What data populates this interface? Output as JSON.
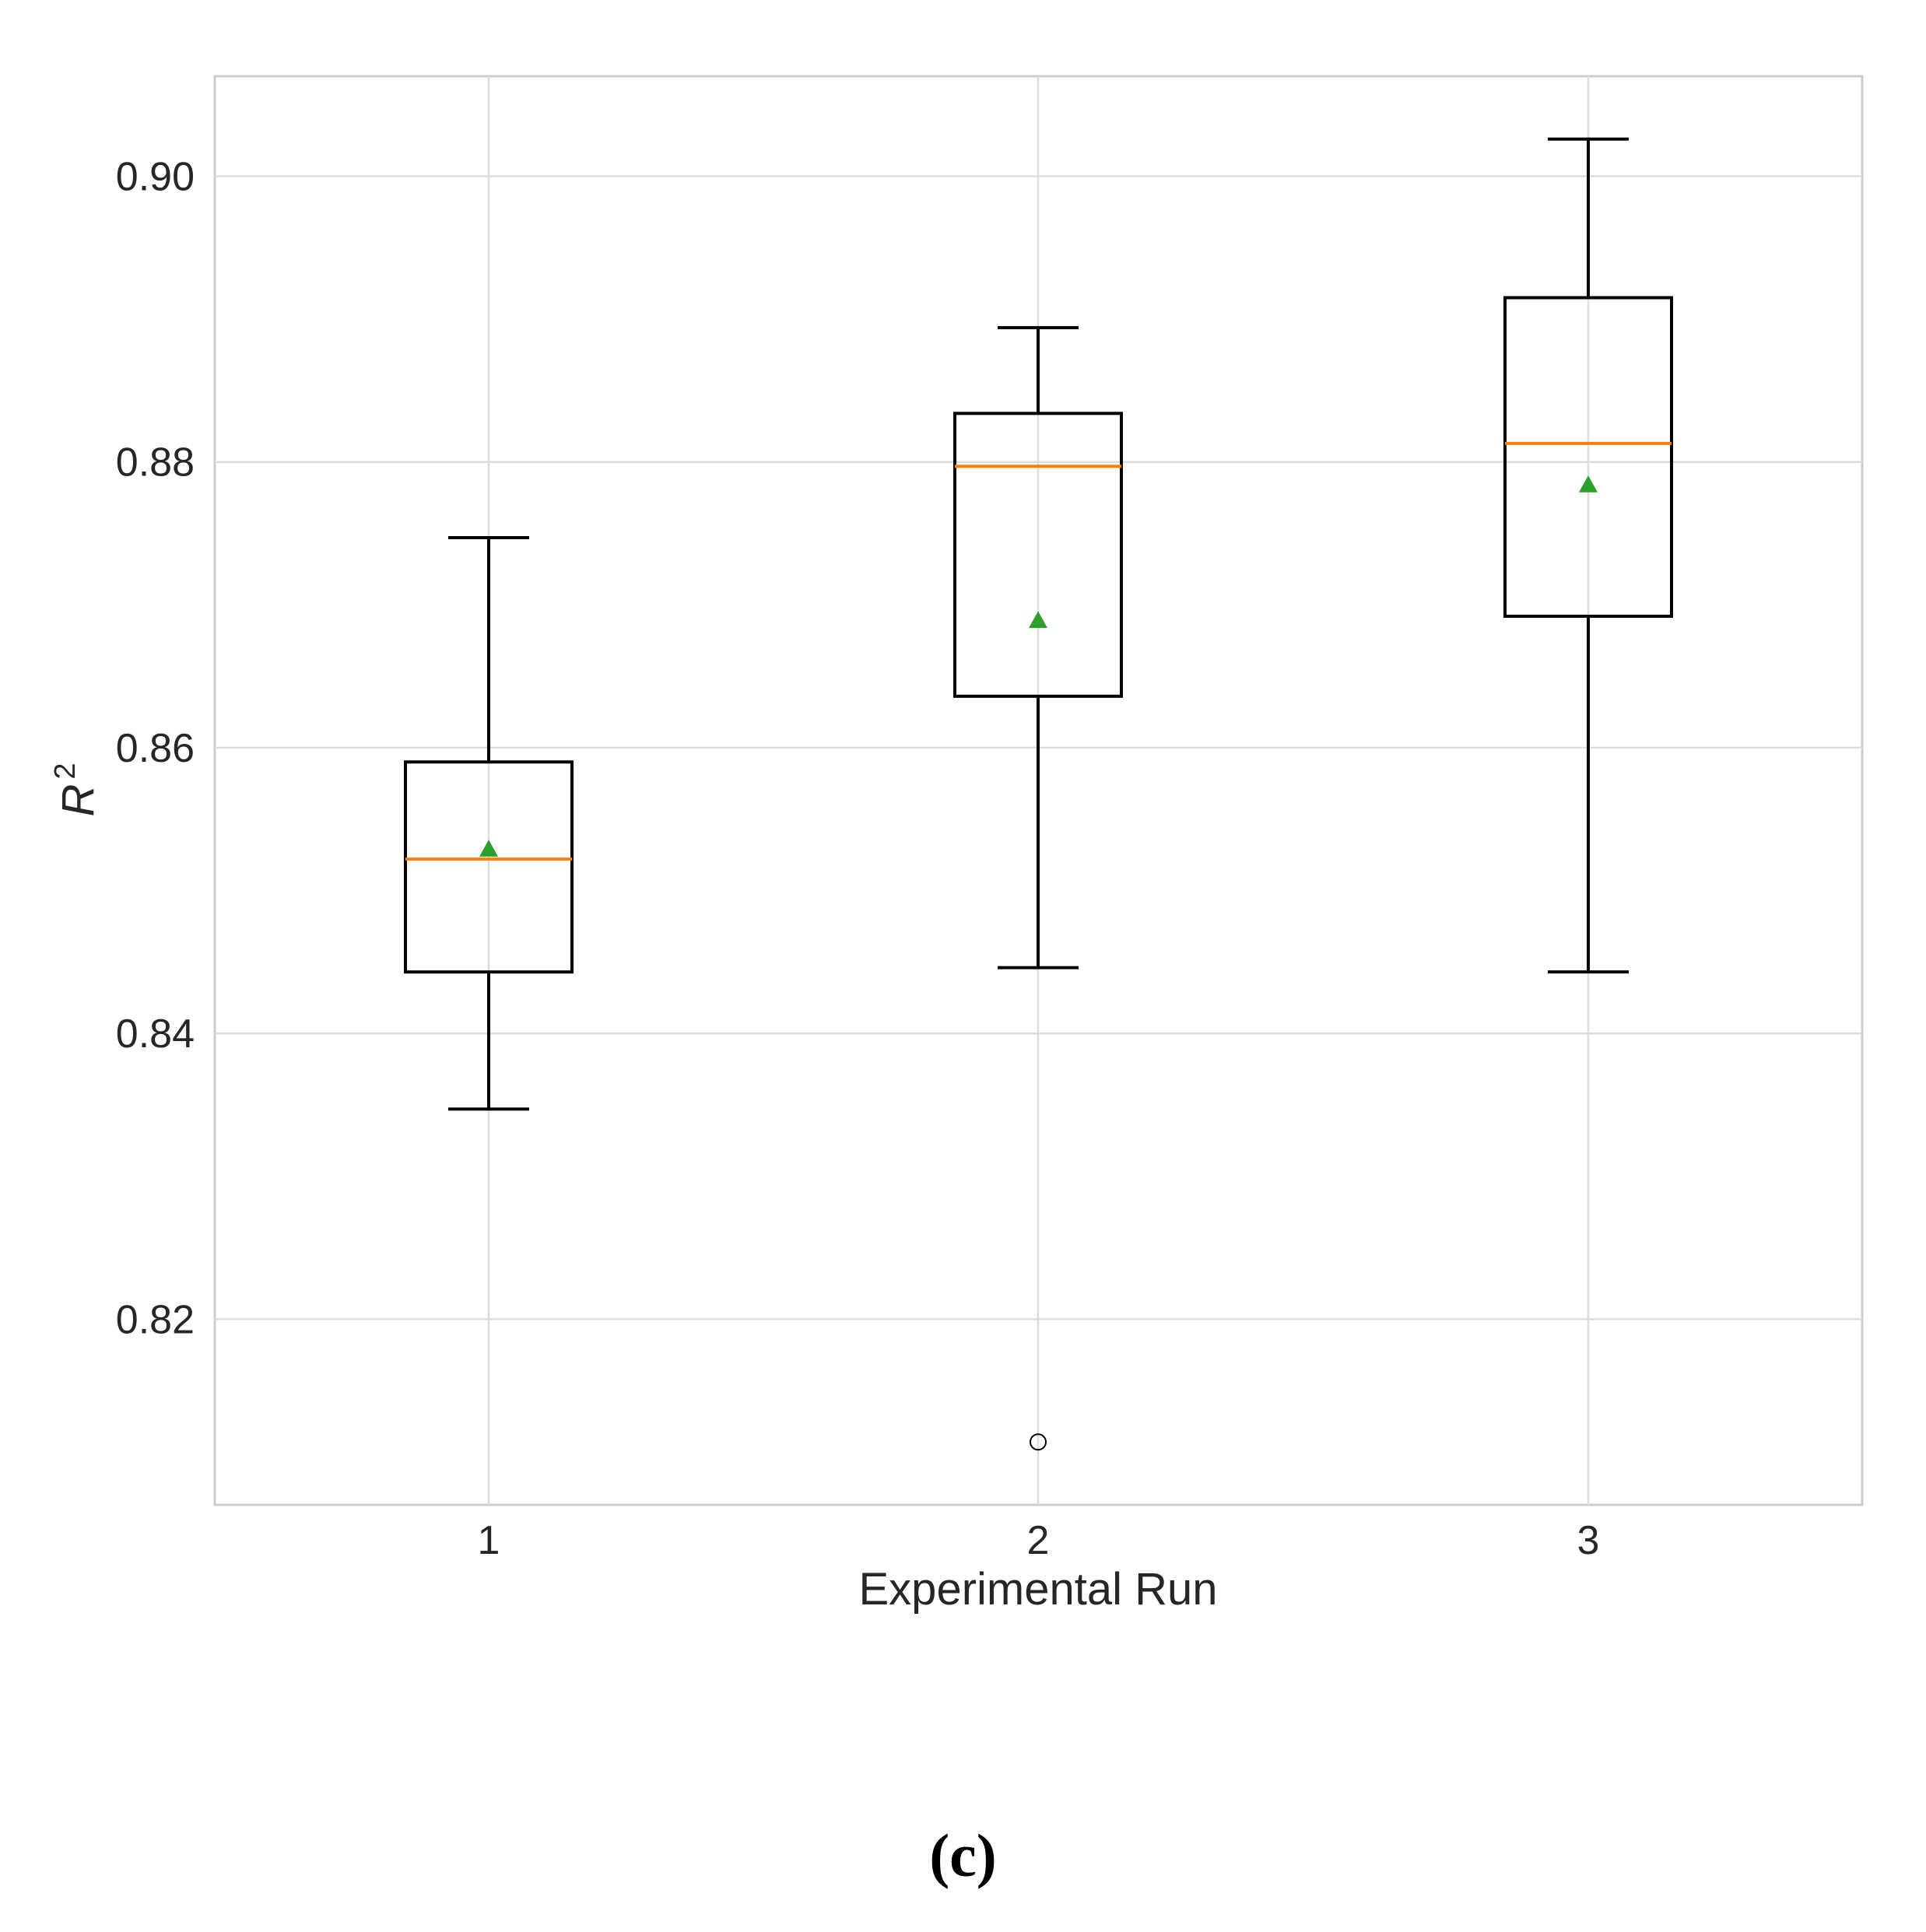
{
  "chart_data": {
    "type": "box",
    "categories": [
      "1",
      "2",
      "3"
    ],
    "xlabel": "Experimental Run",
    "ylabel": "R",
    "ylabel_superscript": "2",
    "ylim": [
      0.807,
      0.907
    ],
    "yticks": [
      0.82,
      0.84,
      0.86,
      0.88,
      0.9
    ],
    "ytick_labels": [
      "0.82",
      "0.84",
      "0.86",
      "0.88",
      "0.90"
    ],
    "grid": true,
    "boxes": [
      {
        "name": "1",
        "whisker_low": 0.8347,
        "q1": 0.8443,
        "median": 0.8522,
        "q3": 0.859,
        "whisker_high": 0.8747,
        "mean": 0.8529,
        "outliers": []
      },
      {
        "name": "2",
        "whisker_low": 0.8446,
        "q1": 0.8636,
        "median": 0.8797,
        "q3": 0.8834,
        "whisker_high": 0.8894,
        "mean": 0.8689,
        "outliers": [
          0.8114
        ]
      },
      {
        "name": "3",
        "whisker_low": 0.8443,
        "q1": 0.8692,
        "median": 0.8813,
        "q3": 0.8915,
        "whisker_high": 0.9026,
        "mean": 0.8784,
        "outliers": []
      }
    ],
    "colors": {
      "median": "#ff7f0e",
      "mean": "#2ca02c",
      "box": "#000000",
      "grid": "#dddddd",
      "frame": "#cccccc"
    }
  },
  "caption": "(c)"
}
